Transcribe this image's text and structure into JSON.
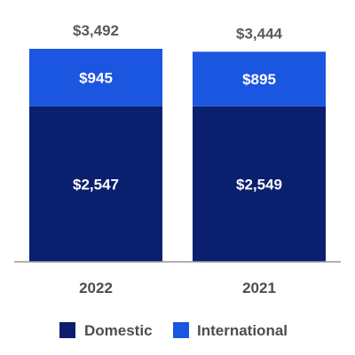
{
  "chart_data": {
    "type": "bar",
    "stacked": true,
    "categories": [
      "2022",
      "2021"
    ],
    "series": [
      {
        "name": "Domestic",
        "values": [
          2547,
          2549
        ],
        "labels": [
          "$2,547",
          "$2,549"
        ],
        "color": "#0a1f6e"
      },
      {
        "name": "International",
        "values": [
          945,
          895
        ],
        "labels": [
          "$945",
          "$895"
        ],
        "color": "#1a56e0"
      }
    ],
    "totals": [
      3492,
      3444
    ],
    "total_labels": [
      "$3,492",
      "$3,444"
    ],
    "ylim": [
      0,
      3600
    ],
    "grid": false,
    "legend": "bottom",
    "title": "",
    "xlabel": "",
    "ylabel": ""
  }
}
